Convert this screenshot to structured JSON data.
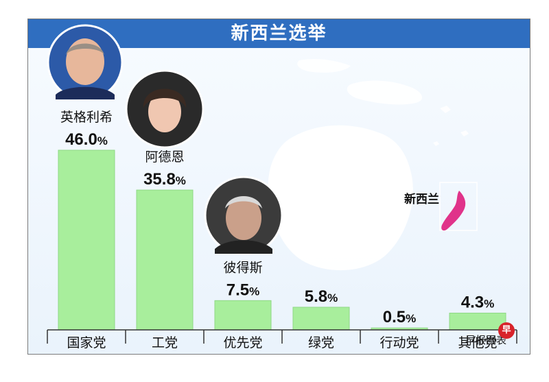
{
  "title": "新西兰选举",
  "map_label": "新西兰",
  "source": "早报图表",
  "colors": {
    "bar": "#a8ee9c",
    "bar_edge": "#8fd886",
    "title_bar": "#2f6ec0",
    "land": "#ffffff",
    "nz": "#e0338a"
  },
  "chart_data": {
    "type": "bar",
    "title": "新西兰选举",
    "categories": [
      "国家党",
      "工党",
      "优先党",
      "绿党",
      "行动党",
      "其他党"
    ],
    "values": [
      46.0,
      35.8,
      7.5,
      5.8,
      0.5,
      4.3
    ],
    "value_labels": [
      "46.0%",
      "35.8%",
      "7.5%",
      "5.8%",
      "0.5%",
      "4.3%"
    ],
    "leader_names": [
      "英格利希",
      "阿德恩",
      "彼得斯",
      "",
      "",
      ""
    ],
    "ylim": [
      0,
      46.0
    ],
    "grid": false
  }
}
